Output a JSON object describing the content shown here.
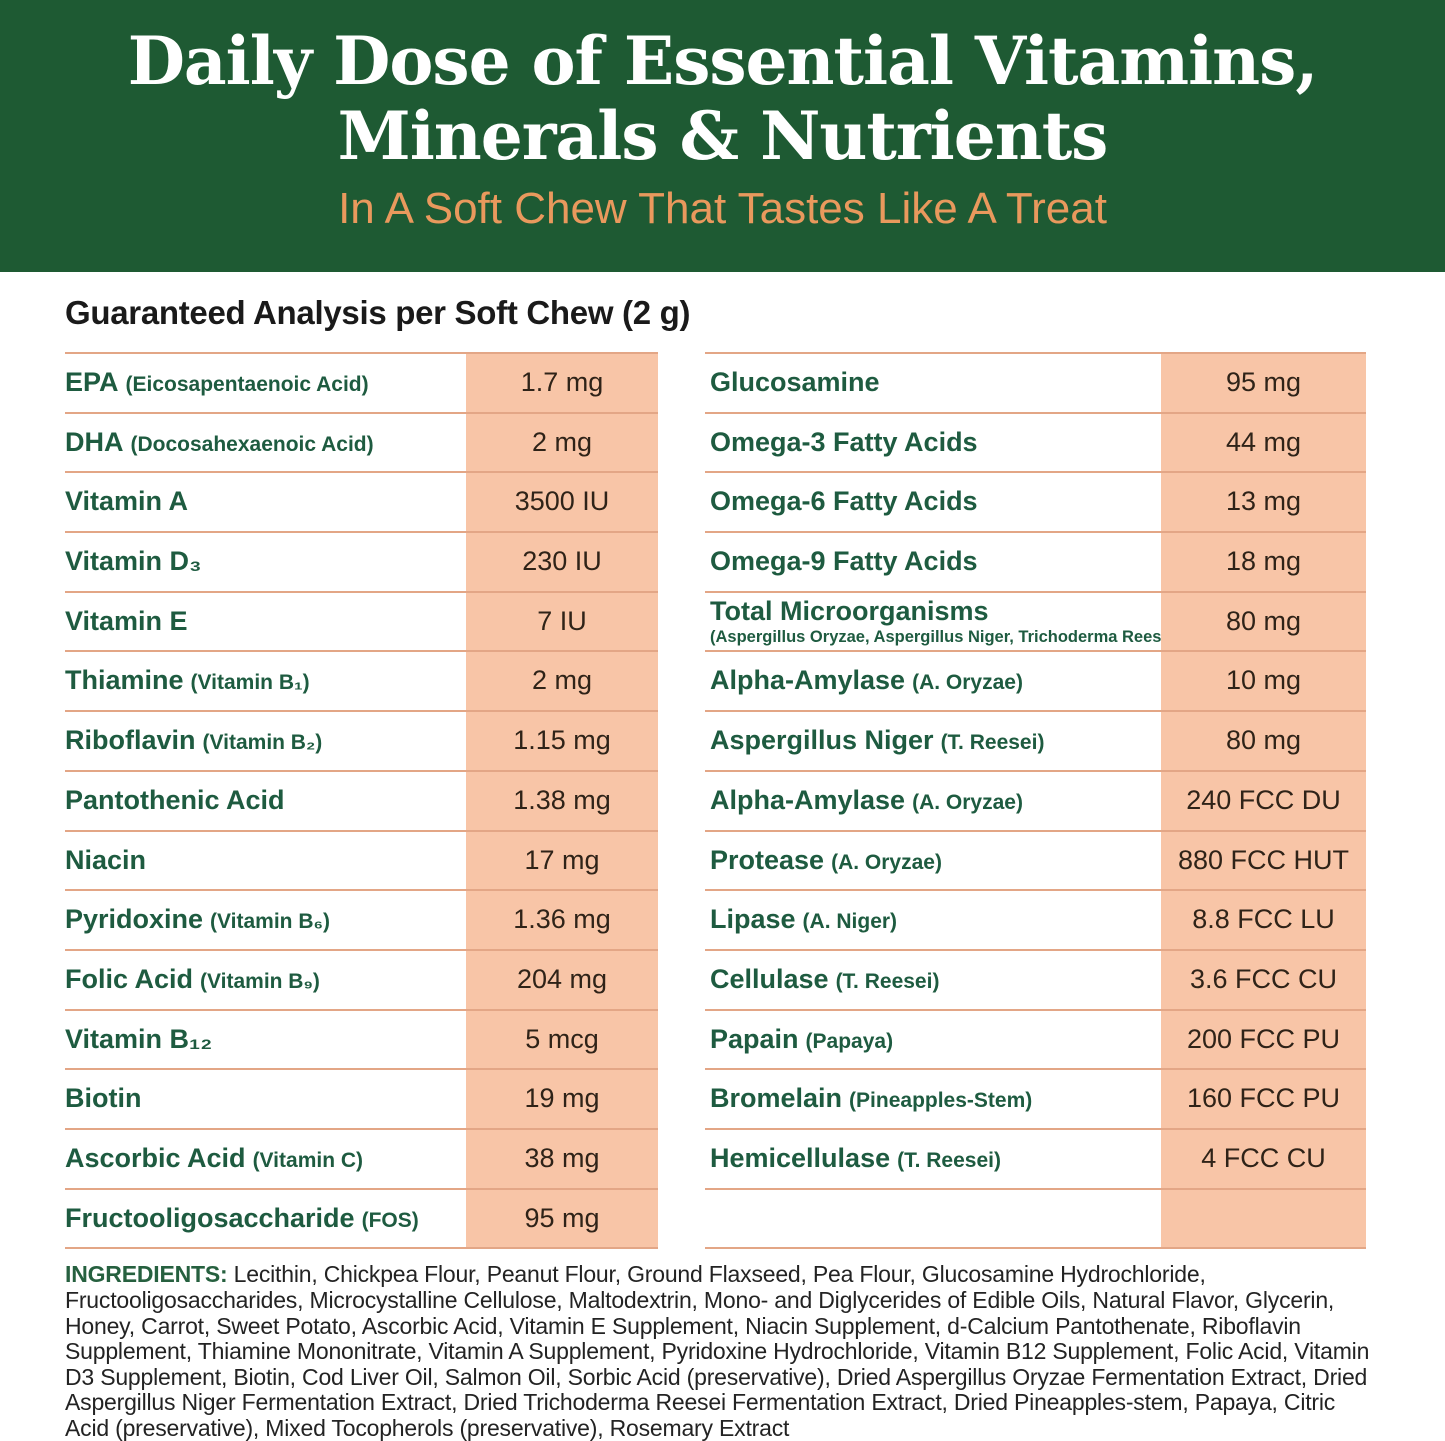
{
  "header": {
    "title_line1": "Daily Dose of Essential Vitamins,",
    "title_line2": "Minerals & Nutrients",
    "subtitle": "In A Soft Chew That Tastes Like A Treat"
  },
  "section_title": "Guaranteed Analysis per Soft Chew (2 g)",
  "colors": {
    "header_green": "#1E5A33",
    "heading_white": "#FFFFFF",
    "subtitle_orange": "#E9995D",
    "section_title_color": "#1A1A1A",
    "nutrient_green": "#1E5B40",
    "value_stripe_peach": "#F8C5A7",
    "divider_line": "#E3A686",
    "value_text": "#2F2318",
    "ingredients_text": "#232323",
    "ingredients_label_green": "#26603F"
  },
  "analysis_table": {
    "left_rows": [
      {
        "name": "EPA",
        "note": "(Eicosapentaenoic Acid)",
        "value": "1.7 mg"
      },
      {
        "name": "DHA",
        "note": "(Docosahexaenoic Acid)",
        "value": "2 mg"
      },
      {
        "name": "Vitamin A",
        "note": "",
        "value": "3500 IU"
      },
      {
        "name": "Vitamin D₃",
        "note": "",
        "value": "230 IU"
      },
      {
        "name": "Vitamin E",
        "note": "",
        "value": "7 IU"
      },
      {
        "name": "Thiamine",
        "note": "(Vitamin B₁)",
        "value": "2 mg"
      },
      {
        "name": "Riboflavin",
        "note": "(Vitamin B₂)",
        "value": "1.15 mg"
      },
      {
        "name": "Pantothenic Acid",
        "note": "",
        "value": "1.38 mg"
      },
      {
        "name": "Niacin",
        "note": "",
        "value": "17 mg"
      },
      {
        "name": "Pyridoxine",
        "note": "(Vitamin B₆)",
        "value": "1.36 mg"
      },
      {
        "name": "Folic Acid",
        "note": "(Vitamin B₉)",
        "value": "204 mg"
      },
      {
        "name": "Vitamin B₁₂",
        "note": "",
        "value": "5 mcg"
      },
      {
        "name": "Biotin",
        "note": "",
        "value": "19 mg"
      },
      {
        "name": "Ascorbic Acid",
        "note": "(Vitamin C)",
        "value": "38 mg"
      },
      {
        "name": "Fructooligosaccharide",
        "note": "(FOS)",
        "value": "95 mg"
      }
    ],
    "right_rows": [
      {
        "name": "Glucosamine",
        "note": "",
        "value": "95 mg"
      },
      {
        "name": "Omega-3 Fatty Acids",
        "note": "",
        "value": "44 mg"
      },
      {
        "name": "Omega-6 Fatty Acids",
        "note": "",
        "value": "13 mg"
      },
      {
        "name": "Omega-9 Fatty Acids",
        "note": "",
        "value": "18 mg"
      },
      {
        "name": "Total Microorganisms",
        "note": "(Aspergillus Oryzae, Aspergillus Niger, Trichoderma Reesei)",
        "note_block": true,
        "value": "80 mg"
      },
      {
        "name": "Alpha-Amylase",
        "note": "(A. Oryzae)",
        "value": "10 mg"
      },
      {
        "name": "Aspergillus Niger",
        "note": "(T. Reesei)",
        "value": "80 mg"
      },
      {
        "name": "Alpha-Amylase",
        "note": "(A. Oryzae)",
        "value": "240 FCC DU"
      },
      {
        "name": "Protease",
        "note": "(A. Oryzae)",
        "value": "880 FCC HUT"
      },
      {
        "name": "Lipase",
        "note": "(A. Niger)",
        "value": "8.8 FCC LU"
      },
      {
        "name": "Cellulase",
        "note": "(T. Reesei)",
        "value": "3.6 FCC CU"
      },
      {
        "name": "Papain",
        "note": "(Papaya)",
        "value": "200 FCC PU"
      },
      {
        "name": "Bromelain",
        "note": "(Pineapples-Stem)",
        "value": "160 FCC PU"
      },
      {
        "name": "Hemicellulase",
        "note": "(T. Reesei)",
        "value": "4 FCC CU"
      },
      {
        "name": "",
        "note": "",
        "value": ""
      }
    ]
  },
  "ingredients": {
    "label": "INGREDIENTS:",
    "text": " Lecithin, Chickpea Flour, Peanut Flour, Ground Flaxseed, Pea Flour, Glucosamine Hydrochloride, Fructooligosaccharides, Microcystalline Cellulose, Maltodextrin, Mono- and Diglycerides of Edible Oils, Natural Flavor, Glycerin, Honey, Carrot, Sweet Potato, Ascorbic Acid, Vitamin E Supplement, Niacin Supplement, d-Calcium Pantothenate, Riboflavin Supplement, Thiamine Mononitrate, Vitamin A Supplement, Pyridoxine Hydrochloride, Vitamin B12 Supplement, Folic Acid, Vitamin D3 Supplement, Biotin, Cod Liver Oil, Salmon Oil, Sorbic Acid (preservative), Dried Aspergillus Oryzae Fermentation Extract, Dried Aspergillus Niger Fermentation Extract, Dried Trichoderma Reesei Fermentation Extract, Dried Pineapples-stem, Papaya, Citric Acid (preservative), Mixed Tocopherols (preservative), Rosemary Extract"
  }
}
